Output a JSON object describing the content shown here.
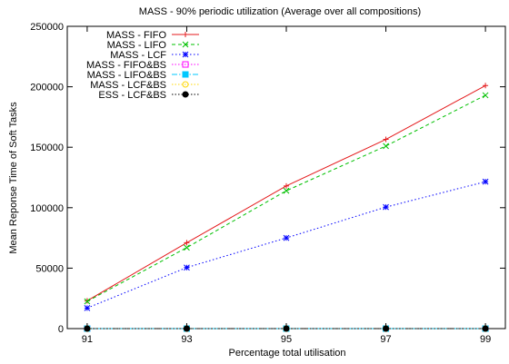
{
  "chart_data": {
    "type": "line",
    "title": "MASS - 90% periodic utilization (Average over all compositions)",
    "xlabel": "Percentage total utilisation",
    "ylabel": "Mean Reponse Time of Soft Tasks",
    "x": [
      91,
      93,
      95,
      97,
      99
    ],
    "xlim": [
      90.6,
      99.4
    ],
    "ylim": [
      0,
      250000
    ],
    "xticks": [
      "91",
      "93",
      "95",
      "97",
      "99"
    ],
    "yticks": [
      "0",
      "50000",
      "100000",
      "150000",
      "200000",
      "250000"
    ],
    "grid": false,
    "legend_position": "top-left",
    "series": [
      {
        "name": "MASS - FIFO",
        "values": [
          23000,
          71000,
          118000,
          156500,
          201000
        ],
        "color": "#e41a1c",
        "dash": "",
        "marker": "plus"
      },
      {
        "name": "MASS - LIFO",
        "values": [
          22500,
          67000,
          114000,
          151000,
          193000
        ],
        "color": "#00c000",
        "dash": "4,3",
        "marker": "cross"
      },
      {
        "name": "MASS - LCF",
        "values": [
          17000,
          50500,
          75000,
          100500,
          121500
        ],
        "color": "#0000ff",
        "dash": "1.5,2.5",
        "marker": "star"
      },
      {
        "name": "MASS - FIFO&BS",
        "values": [
          0,
          0,
          0,
          0,
          0
        ],
        "color": "#ff00ff",
        "dash": "1.5,2",
        "marker": "square"
      },
      {
        "name": "MASS - LIFO&BS",
        "values": [
          0,
          0,
          0,
          0,
          0
        ],
        "color": "#00c8ff",
        "dash": "6,2,1.5,2",
        "marker": "filled-square"
      },
      {
        "name": "MASS - LCF&BS",
        "values": [
          0,
          0,
          0,
          0,
          0
        ],
        "color": "#ffd700",
        "dash": "1.5,2",
        "marker": "circle"
      },
      {
        "name": "ESS - LCF&BS",
        "values": [
          0,
          0,
          0,
          0,
          0
        ],
        "color": "#000000",
        "dash": "1.5,2",
        "marker": "filled-circle"
      }
    ]
  }
}
